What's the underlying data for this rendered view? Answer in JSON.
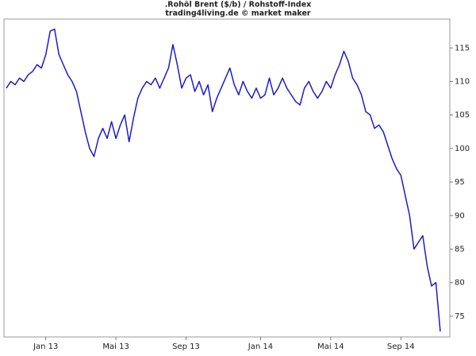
{
  "chart_data": {
    "type": "line",
    "title": ".Rohöl Brent ($/b) / Rohstoff-Index",
    "subtitle": "trading4living.de © market maker",
    "categories": [
      null,
      null,
      null,
      null,
      null,
      null,
      null,
      null,
      null,
      "Jan 13",
      null,
      null,
      null,
      null,
      null,
      null,
      null,
      null,
      null,
      null,
      null,
      null,
      null,
      null,
      null,
      "Mai 13",
      null,
      null,
      null,
      null,
      null,
      null,
      null,
      null,
      null,
      null,
      null,
      null,
      null,
      null,
      null,
      "Sep 13",
      null,
      null,
      null,
      null,
      null,
      null,
      null,
      null,
      null,
      null,
      null,
      null,
      null,
      null,
      null,
      null,
      "Jan 14",
      null,
      null,
      null,
      null,
      null,
      null,
      null,
      null,
      null,
      null,
      null,
      null,
      null,
      null,
      null,
      "Mai 14",
      null,
      null,
      null,
      null,
      null,
      null,
      null,
      null,
      null,
      null,
      null,
      null,
      null,
      null,
      null,
      "Sep 14",
      null,
      null,
      null,
      null,
      null,
      null,
      null,
      null,
      null
    ],
    "values": [
      109,
      110,
      109.5,
      110.5,
      110,
      111,
      111.5,
      112.5,
      112,
      114,
      117.5,
      117.8,
      114,
      112.5,
      111,
      110,
      108.5,
      105.5,
      102.5,
      100,
      98.8,
      101.5,
      103,
      101.5,
      104,
      101.5,
      103.5,
      105,
      101,
      104.5,
      107.5,
      109,
      110,
      109.5,
      110.5,
      109,
      110.5,
      112,
      115.5,
      112.5,
      109,
      110.5,
      111,
      108.5,
      110,
      108,
      109.5,
      105.5,
      107.5,
      109,
      110.5,
      112,
      109.5,
      108,
      110,
      108.5,
      107.5,
      109,
      107.5,
      108,
      110.5,
      108,
      109,
      110.5,
      109,
      108,
      107,
      106.5,
      109,
      110,
      108.5,
      107.5,
      108.5,
      110,
      109,
      111,
      112.5,
      114.5,
      113,
      110.5,
      109.5,
      108,
      105.5,
      105,
      103,
      103.5,
      102.5,
      100.5,
      98.5,
      97,
      96,
      93,
      90,
      85,
      86,
      87,
      82.5,
      79.5,
      80,
      72.7
    ],
    "color": "#1c1cc8",
    "ylim": [
      71.9,
      119.3
    ],
    "yticks": [
      75,
      80,
      85,
      90,
      95,
      100,
      105,
      110,
      115
    ],
    "grid": false
  }
}
